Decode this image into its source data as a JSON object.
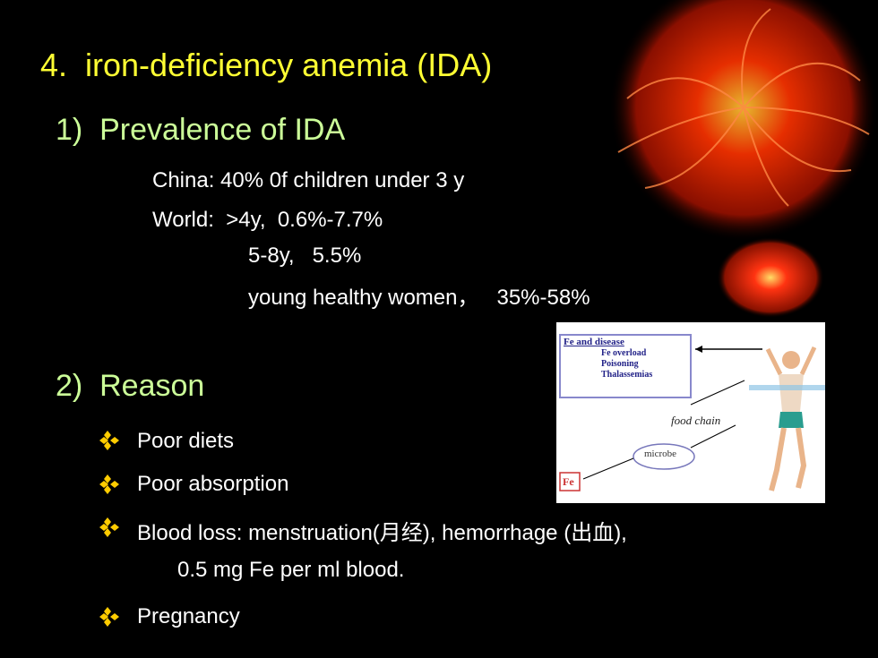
{
  "slide": {
    "title": "4.  iron-deficiency anemia (IDA)",
    "prevalence": {
      "heading": "1)  Prevalence of IDA",
      "lines": [
        "China: 40% 0f children under 3 y",
        "World:  >4y,  0.6%-7.7%",
        "5-8y,   5.5%",
        "young healthy women，   35%-58%"
      ]
    },
    "reason": {
      "heading": "2)  Reason",
      "bullets": [
        "Poor diets",
        "Poor absorption",
        "Blood loss: menstruation(月经), hemorrhage (出血),",
        "Pregnancy"
      ],
      "continuation": "0.5 mg Fe per ml blood."
    },
    "figure": {
      "box_title": "Fe and disease",
      "box_items": [
        "Fe overload",
        "Poisoning",
        "Thalassemias"
      ],
      "food_chain": "food chain",
      "microbe": "microbe",
      "fe": "Fe"
    }
  }
}
